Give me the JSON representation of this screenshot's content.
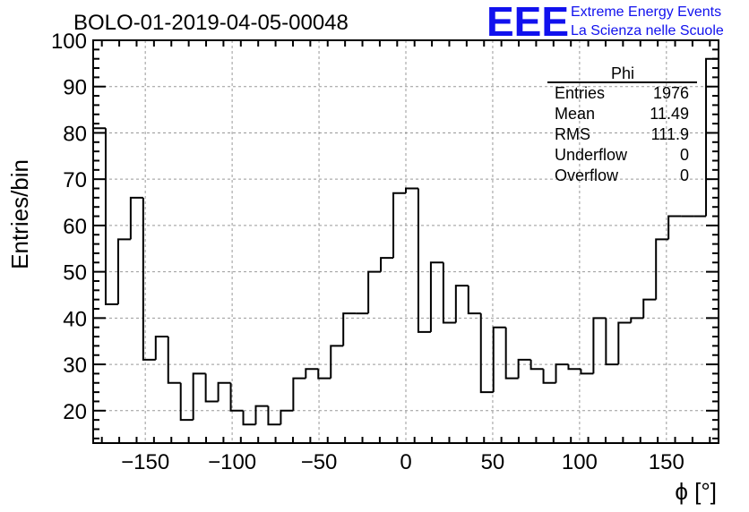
{
  "chart_data": {
    "type": "bar",
    "style": "step-histogram",
    "title": "BOLO-01-2019-04-05-00048",
    "xlabel": "ϕ [°]",
    "ylabel": "Entries/bin",
    "xlim": [
      -180,
      180
    ],
    "ylim": [
      13,
      100
    ],
    "grid": true,
    "bin_edges": [
      -180,
      -172.8,
      -165.6,
      -158.4,
      -151.2,
      -144,
      -136.8,
      -129.6,
      -122.4,
      -115.2,
      -108,
      -100.8,
      -93.6,
      -86.4,
      -79.2,
      -72,
      -64.8,
      -57.6,
      -50.4,
      -43.2,
      -36,
      -28.8,
      -21.6,
      -14.4,
      -7.2,
      0,
      7.2,
      14.4,
      21.6,
      28.8,
      36,
      43.2,
      50.4,
      57.6,
      64.8,
      72,
      79.2,
      86.4,
      93.6,
      100.8,
      108,
      115.2,
      122.4,
      129.6,
      136.8,
      144,
      151.2,
      158.4,
      165.6,
      172.8,
      180
    ],
    "values": [
      81,
      43,
      57,
      66,
      31,
      36,
      26,
      18,
      28,
      22,
      26,
      20,
      17,
      21,
      17,
      20,
      27,
      29,
      27,
      34,
      41,
      41,
      50,
      53,
      67,
      68,
      37,
      52,
      39,
      47,
      41,
      24,
      38,
      27,
      31,
      29,
      26,
      30,
      29,
      28,
      40,
      30,
      39,
      40,
      44,
      57,
      62,
      62,
      62,
      96
    ],
    "x_ticks": [
      -150,
      -100,
      -50,
      0,
      50,
      100,
      150
    ],
    "x_tick_labels": [
      "−150",
      "−100",
      "−50",
      "0",
      "50",
      "100",
      "150"
    ],
    "y_ticks": [
      20,
      30,
      40,
      50,
      60,
      70,
      80,
      90,
      100
    ],
    "y_tick_labels": [
      "20",
      "30",
      "40",
      "50",
      "60",
      "70",
      "80",
      "90",
      "100"
    ],
    "stats_box": {
      "title": "Phi",
      "placement": "top-right",
      "rows": [
        {
          "label": "Entries",
          "value": "1976"
        },
        {
          "label": "Mean",
          "value": "11.49"
        },
        {
          "label": "RMS",
          "value": "111.9"
        },
        {
          "label": "Underflow",
          "value": "0"
        },
        {
          "label": "Overflow",
          "value": "0"
        }
      ]
    },
    "colors": {
      "line": "#000000",
      "grid": "#999999",
      "logo": "#1111ee"
    }
  },
  "logo": {
    "mark": "EEE",
    "line1": "Extreme Energy Events",
    "line2": "La Scienza nelle Scuole"
  }
}
